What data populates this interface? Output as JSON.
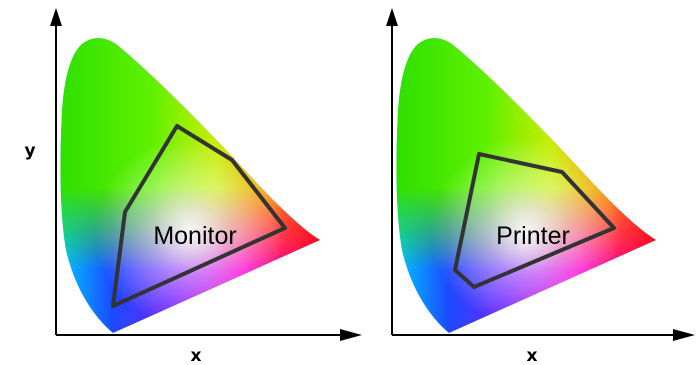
{
  "axes": {
    "x_label": "x",
    "y_label": "y"
  },
  "panels": [
    {
      "id": "monitor",
      "label": "Monitor"
    },
    {
      "id": "printer",
      "label": "Printer"
    }
  ],
  "colors": {
    "gamut_outline": "#333333",
    "axis": "#000000",
    "background": "#ffffff"
  }
}
